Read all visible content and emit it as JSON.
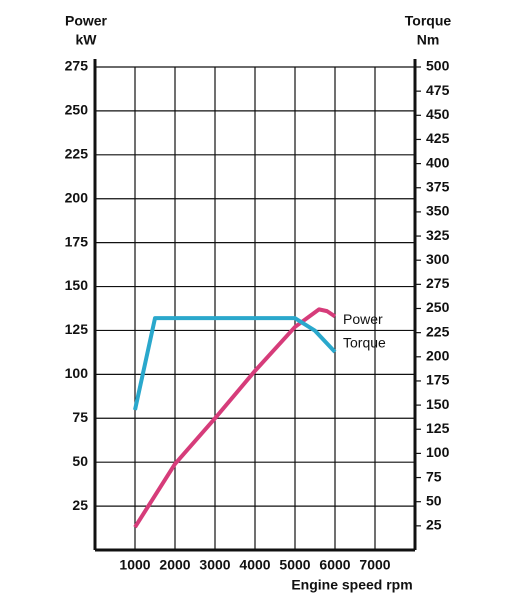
{
  "chart_data": {
    "type": "line",
    "ylabel": "Power",
    "yunit": "kW",
    "y2label": "Torque",
    "y2unit": "Nm",
    "xlabel": "Engine speed rpm",
    "xlim": [
      0,
      8000
    ],
    "xticks": [
      1000,
      2000,
      3000,
      4000,
      5000,
      6000,
      7000
    ],
    "ylim": [
      0,
      275
    ],
    "yticks": [
      25,
      50,
      75,
      100,
      125,
      150,
      175,
      200,
      225,
      250,
      275
    ],
    "y2lim": [
      0,
      500
    ],
    "y2ticks": [
      25,
      50,
      75,
      100,
      125,
      150,
      175,
      200,
      225,
      250,
      275,
      300,
      325,
      350,
      375,
      400,
      425,
      450,
      475,
      500
    ],
    "grid": true,
    "series": [
      {
        "name": "Power",
        "color": "#d63c7a",
        "x": [
          1000,
          2000,
          3000,
          4000,
          5000,
          5600,
          5800,
          6000
        ],
        "values": [
          13,
          49,
          75,
          102,
          127,
          137,
          136,
          133
        ]
      },
      {
        "name": "Torque",
        "color": "#2aa8cc",
        "axis": "y2",
        "x": [
          1000,
          1500,
          5000,
          5500,
          6000
        ],
        "values": [
          145,
          240,
          240,
          227,
          205
        ]
      }
    ]
  }
}
